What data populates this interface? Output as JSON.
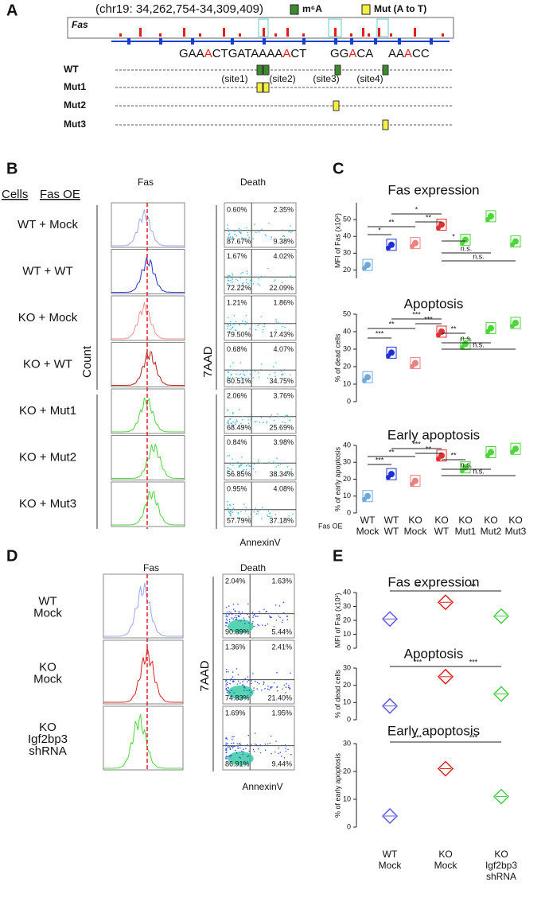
{
  "panel_a": {
    "label": "A",
    "coords": "(chr19: 34,262,754-34,309,409)",
    "gene": "Fas",
    "legend": [
      "m⁶A",
      "Mut (A to T)"
    ],
    "sequences": [
      [
        "GAA",
        "A",
        "CTGATAAAA",
        "A",
        "CT"
      ],
      [
        "GG",
        "A",
        "CA"
      ],
      [
        "AA",
        "A",
        "CC"
      ]
    ],
    "sites": [
      "(site1)",
      "(site2)",
      "(site3)",
      "(site4)"
    ],
    "rows": [
      "WT",
      "Mut1",
      "Mut2",
      "Mut3"
    ]
  },
  "panel_b": {
    "label": "B",
    "col_headers": [
      "Cells",
      "Fas OE"
    ],
    "fas": "Fas",
    "death": "Death",
    "count": "Count",
    "y_axis": "7AAD",
    "x_axis": "AnnexinV",
    "rows": [
      {
        "name": "WT + Mock",
        "quadrants": [
          "0.60%",
          "2.35%",
          "87.67%",
          "9.38%"
        ]
      },
      {
        "name": "WT + WT",
        "quadrants": [
          "1.67%",
          "4.02%",
          "72.22%",
          "22.09%"
        ]
      },
      {
        "name": "KO + Mock",
        "quadrants": [
          "1.21%",
          "1.86%",
          "79.50%",
          "17.43%"
        ]
      },
      {
        "name": "KO + WT",
        "quadrants": [
          "0.68%",
          "4.07%",
          "60.51%",
          "34.75%"
        ]
      },
      {
        "name": "KO + Mut1",
        "quadrants": [
          "2.06%",
          "3.76%",
          "68.49%",
          "25.69%"
        ]
      },
      {
        "name": "KO + Mut2",
        "quadrants": [
          "0.84%",
          "3.98%",
          "56.85%",
          "38.34%"
        ]
      },
      {
        "name": "KO + Mut3",
        "quadrants": [
          "0.95%",
          "4.08%",
          "57.79%",
          "37.18%"
        ]
      }
    ]
  },
  "panel_c": {
    "label": "C",
    "group_title": "Fas OE",
    "groups": [
      [
        "WT",
        "Mock"
      ],
      [
        "WT",
        "WT"
      ],
      [
        "KO",
        "Mock"
      ],
      [
        "KO",
        "WT"
      ],
      [
        "KO",
        "Mut1"
      ],
      [
        "KO",
        "Mut2"
      ],
      [
        "KO",
        "Mut3"
      ]
    ],
    "colors": [
      "#6fa8dc",
      "#1f2fd6",
      "#f08080",
      "#e03030",
      "#4cd63a",
      "#4cd63a",
      "#4cd63a"
    ],
    "plots": [
      {
        "title": "Fas expression",
        "ylabel": "MFI of Fas (x10²)",
        "ylim": [
          15,
          60
        ],
        "yticks": [
          20,
          30,
          40,
          50
        ],
        "values": [
          23,
          35,
          36,
          47,
          38,
          52,
          37
        ],
        "signif": [
          "*",
          "**",
          "*",
          "**",
          "*",
          "n.s.",
          "n.s."
        ]
      },
      {
        "title": "Apoptosis",
        "ylabel": "% of dead cells",
        "ylim": [
          0,
          50
        ],
        "yticks": [
          0,
          10,
          20,
          30,
          40,
          50
        ],
        "values": [
          14,
          28,
          22,
          40,
          33,
          42,
          45
        ],
        "signif": [
          "***",
          "**",
          "***",
          "***",
          "**",
          "n.s.",
          "n.s."
        ]
      },
      {
        "title": "Early apoptosis",
        "ylabel": "% of early apoptosis",
        "ylim": [
          0,
          40
        ],
        "yticks": [
          0,
          10,
          20,
          30,
          40
        ],
        "values": [
          10,
          23,
          19,
          34,
          27,
          36,
          38
        ],
        "signif": [
          "***",
          "**",
          "***",
          "**",
          "**",
          "n.s.",
          "n.s."
        ]
      }
    ]
  },
  "panel_d": {
    "label": "D",
    "fas": "Fas",
    "death": "Death",
    "y_axis": "7AAD",
    "x_axis": "AnnexinV",
    "rows": [
      {
        "name": [
          "WT",
          "Mock"
        ],
        "quadrants": [
          "2.04%",
          "1.63%",
          "90.89%",
          "5.44%"
        ]
      },
      {
        "name": [
          "KO",
          "Mock"
        ],
        "quadrants": [
          "1.36%",
          "2.41%",
          "74.83%",
          "21.40%"
        ]
      },
      {
        "name": [
          "KO",
          "Igf2bp3",
          "shRNA"
        ],
        "quadrants": [
          "1.69%",
          "1.95%",
          "86.91%",
          "9.44%"
        ]
      }
    ]
  },
  "panel_e": {
    "label": "E",
    "groups": [
      [
        "WT",
        "Mock"
      ],
      [
        "KO",
        "Mock"
      ],
      [
        "KO",
        "Igf2bp3",
        "shRNA"
      ]
    ],
    "colors": [
      "#5a5ae6",
      "#e02020",
      "#44cc44"
    ],
    "plots": [
      {
        "title": "Fas expression",
        "ylabel": "MFI of Fas (x10²)",
        "ylim": [
          0,
          40
        ],
        "yticks": [
          0,
          10,
          20,
          30,
          40
        ],
        "values": [
          21,
          33,
          23
        ],
        "signif": [
          "**",
          "**"
        ]
      },
      {
        "title": "Apoptosis",
        "ylabel": "% of dead cells",
        "ylim": [
          0,
          30
        ],
        "yticks": [
          0,
          10,
          20,
          30
        ],
        "values": [
          8,
          25,
          15
        ],
        "signif": [
          "***",
          "***"
        ]
      },
      {
        "title": "Early apoptosis",
        "ylabel": "% of early apoptosis",
        "ylim": [
          0,
          30
        ],
        "yticks": [
          0,
          10,
          20,
          30
        ],
        "values": [
          4,
          21,
          11
        ],
        "signif": [
          "***",
          "***"
        ]
      }
    ]
  }
}
